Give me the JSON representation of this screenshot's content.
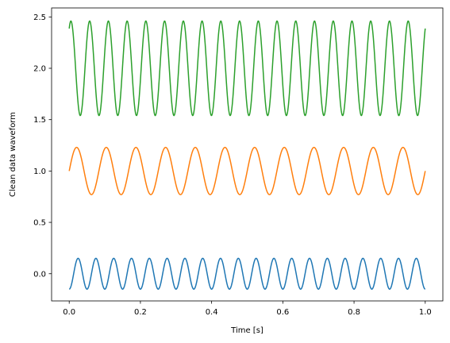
{
  "chart_data": {
    "type": "line",
    "title": "",
    "xlabel": "Time [s]",
    "ylabel": "Clean data waveform",
    "xlim": [
      -0.0495,
      1.0495
    ],
    "ylim": [
      -0.2647,
      2.5874
    ],
    "xticks": [
      0.0,
      0.2,
      0.4,
      0.6,
      0.8,
      1.0
    ],
    "xtick_labels": [
      "0.0",
      "0.2",
      "0.4",
      "0.6",
      "0.8",
      "1.0"
    ],
    "yticks": [
      0.0,
      0.5,
      1.0,
      1.5,
      2.0,
      2.5
    ],
    "ytick_labels": [
      "0.0",
      "0.5",
      "1.0",
      "1.5",
      "2.0",
      "2.5"
    ],
    "grid": false,
    "legend": "none",
    "series": [
      {
        "color": "#1f77b4",
        "offset": 0.0,
        "amplitude": 0.15,
        "frequency_hz": 20,
        "phase_rad": -1.5708
      },
      {
        "color": "#ff7f0e",
        "offset": 1.0,
        "amplitude": 0.23,
        "frequency_hz": 12,
        "phase_rad": 0.0
      },
      {
        "color": "#2ca02c",
        "offset": 2.0,
        "amplitude": 0.46,
        "frequency_hz": 19,
        "phase_rad": 1.0
      }
    ]
  }
}
